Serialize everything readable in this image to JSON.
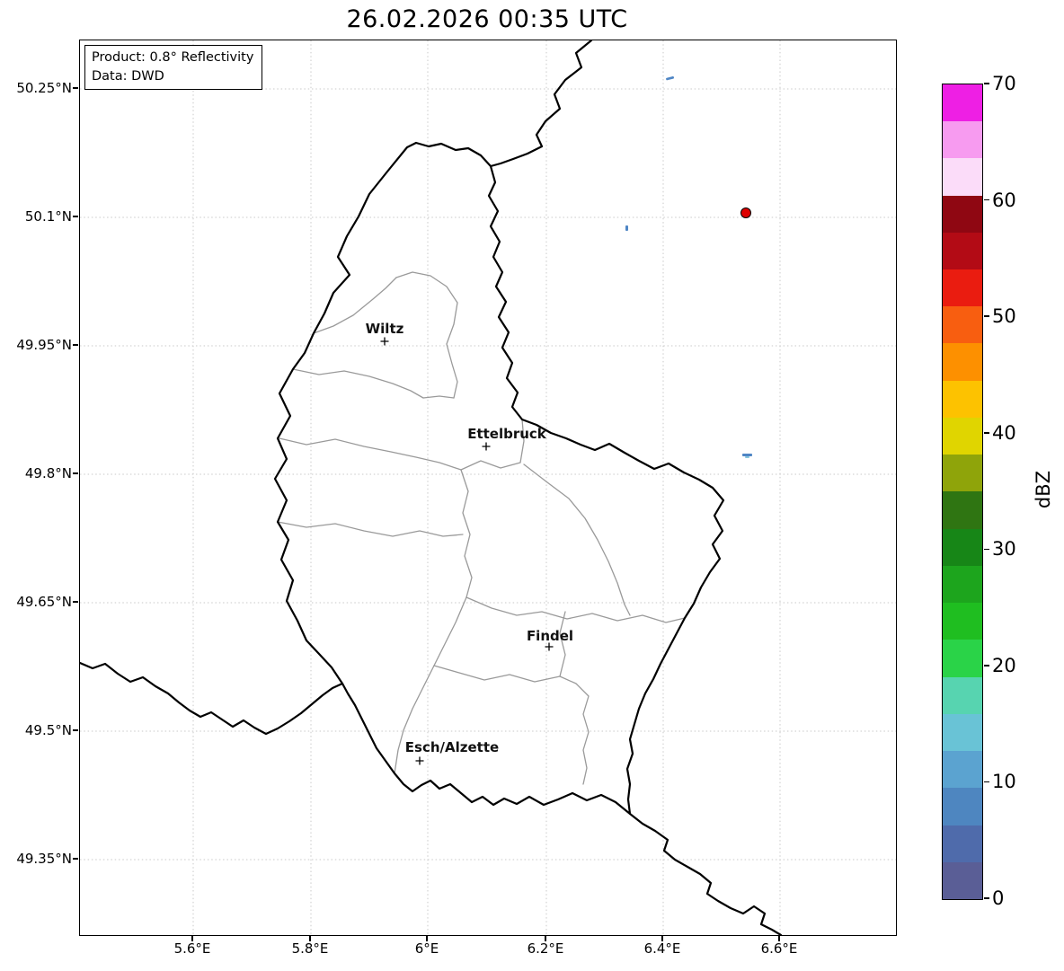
{
  "title": "26.02.2026 00:35 UTC",
  "annotation": {
    "product": "Product: 0.8° Reflectivity",
    "data_source": "Data: DWD"
  },
  "axes": {
    "y_ticks": [
      "50.25°N",
      "50.1°N",
      "49.95°N",
      "49.8°N",
      "49.65°N",
      "49.5°N",
      "49.35°N"
    ],
    "x_ticks": [
      "5.6°E",
      "5.8°E",
      "6°E",
      "6.2°E",
      "6.4°E",
      "6.6°E"
    ]
  },
  "map": {
    "cities": [
      {
        "name": "Wiltz"
      },
      {
        "name": "Ettelbruck"
      },
      {
        "name": "Findel"
      },
      {
        "name": "Esch/Alzette"
      }
    ],
    "radar_site_color": "#dd0000",
    "echo_color": "#4f86c5",
    "echo_color_light": "#86c5dd",
    "border_color": "#000000",
    "district_border_color": "#9a9a9a"
  },
  "colorbar": {
    "label": "dBZ",
    "unit_min": 0,
    "unit_max": 70,
    "tick_labels": [
      "70",
      "60",
      "50",
      "40",
      "30",
      "20",
      "10",
      "0"
    ],
    "colors_bottom_to_top": [
      "#5a5e96",
      "#4f6bab",
      "#4e86c0",
      "#5ba3d0",
      "#69c3d6",
      "#57d4b0",
      "#2ad348",
      "#1fbe20",
      "#1da51d",
      "#178617",
      "#2f7512",
      "#8fa40a",
      "#e0d500",
      "#fdc200",
      "#fd9000",
      "#f85e10",
      "#ea1c10",
      "#b30b15",
      "#8f0712",
      "#fbdcf9",
      "#f79bf0",
      "#ee1fe4"
    ]
  }
}
